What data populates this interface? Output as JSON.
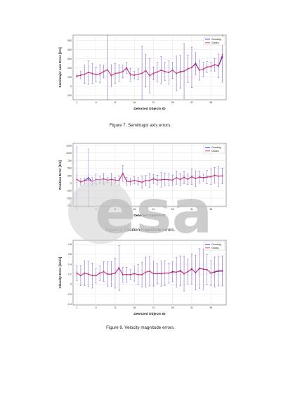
{
  "charts": [
    {
      "caption": "Figure 7. Semimajor axis errors.",
      "chart_data": {
        "type": "line",
        "xlabel": "Detected Objects ID",
        "ylabel": "Semimajor axis Error [km]",
        "xticks": [
          1,
          6,
          11,
          16,
          21,
          26,
          31,
          36
        ],
        "yticks": [
          -100,
          0,
          100,
          200,
          300,
          400,
          500
        ],
        "ylim": [
          -150,
          560
        ],
        "legend_position": "top-right",
        "grid": true,
        "series": [
          {
            "name": "Gooding",
            "color": "#1f1fe0",
            "x": [
              1,
              2,
              3,
              4,
              5,
              6,
              7,
              8,
              9,
              10,
              11,
              12,
              13,
              14,
              15,
              16,
              17,
              18,
              19,
              20,
              21,
              22,
              23,
              24,
              25,
              26,
              27,
              28,
              29,
              30,
              31,
              32,
              33,
              34,
              35,
              36,
              37,
              38,
              39
            ],
            "y": [
              110,
              120,
              130,
              150,
              140,
              125,
              135,
              160,
              180,
              115,
              140,
              145,
              160,
              200,
              125,
              120,
              130,
              140,
              170,
              115,
              140,
              155,
              175,
              160,
              150,
              175,
              140,
              155,
              165,
              190,
              205,
              250,
              175,
              185,
              210,
              215,
              235,
              220,
              320
            ],
            "err": [
              10,
              40,
              100,
              130,
              110,
              80,
              100,
              70,
              420,
              120,
              110,
              90,
              70,
              60,
              70,
              40,
              60,
              300,
              180,
              190,
              70,
              110,
              150,
              100,
              130,
              90,
              190,
              180,
              300,
              150,
              220,
              120,
              110,
              80,
              60,
              50,
              70,
              130,
              280
            ]
          },
          {
            "name": "Gauss",
            "color": "#e0306a",
            "x": [
              1,
              2,
              3,
              4,
              5,
              6,
              7,
              8,
              9,
              10,
              11,
              12,
              13,
              14,
              15,
              16,
              17,
              18,
              19,
              20,
              21,
              22,
              23,
              24,
              25,
              26,
              27,
              28,
              29,
              30,
              31,
              32,
              33,
              34,
              35,
              36,
              37,
              38,
              39
            ],
            "y": [
              110,
              120,
              130,
              150,
              140,
              125,
              135,
              160,
              180,
              115,
              140,
              145,
              160,
              195,
              125,
              120,
              130,
              140,
              170,
              115,
              140,
              155,
              175,
              160,
              150,
              175,
              140,
              160,
              165,
              190,
              205,
              240,
              175,
              185,
              210,
              215,
              235,
              225,
              345
            ],
            "err": [
              10,
              40,
              100,
              130,
              110,
              80,
              100,
              70,
              420,
              120,
              110,
              90,
              70,
              60,
              70,
              40,
              60,
              300,
              180,
              190,
              70,
              110,
              150,
              100,
              130,
              90,
              190,
              180,
              300,
              150,
              220,
              120,
              110,
              80,
              60,
              50,
              70,
              130,
              280
            ]
          }
        ]
      }
    },
    {
      "caption": "Figure 8. Position magnitude errors.",
      "chart_data": {
        "type": "line",
        "xlabel": "Detected Objects ID",
        "ylabel": "Position Error [km]",
        "xticks": [
          1,
          6,
          11,
          16,
          21,
          26,
          31,
          36
        ],
        "yticks": [
          -750,
          -500,
          -250,
          0,
          250,
          500,
          750,
          1000,
          1250
        ],
        "ylim": [
          -780,
          1320
        ],
        "legend_position": "top-right",
        "grid": true,
        "series": [
          {
            "name": "Gooding",
            "color": "#1f1fe0",
            "x": [
              1,
              2,
              3,
              4,
              5,
              6,
              7,
              8,
              9,
              10,
              11,
              12,
              13,
              14,
              15,
              16,
              17,
              18,
              19,
              20,
              21,
              22,
              23,
              24,
              25,
              26,
              27,
              28,
              29,
              30,
              31,
              32,
              33,
              34,
              35,
              36,
              37,
              38,
              39
            ],
            "y": [
              120,
              40,
              80,
              180,
              60,
              120,
              110,
              140,
              100,
              120,
              100,
              90,
              320,
              60,
              50,
              90,
              60,
              30,
              80,
              90,
              140,
              100,
              110,
              120,
              110,
              100,
              180,
              120,
              190,
              130,
              210,
              150,
              200,
              180,
              200,
              210,
              260,
              230,
              240
            ],
            "err": [
              1080,
              100,
              80,
              950,
              120,
              180,
              120,
              180,
              80,
              200,
              90,
              150,
              260,
              130,
              110,
              120,
              120,
              200,
              170,
              230,
              150,
              160,
              240,
              210,
              200,
              170,
              220,
              200,
              210,
              180,
              260,
              260,
              200,
              120,
              220,
              260,
              260,
              340,
              260
            ]
          },
          {
            "name": "Gauss",
            "color": "#e0306a",
            "x": [
              1,
              2,
              3,
              4,
              5,
              6,
              7,
              8,
              9,
              10,
              11,
              12,
              13,
              14,
              15,
              16,
              17,
              18,
              19,
              20,
              21,
              22,
              23,
              24,
              25,
              26,
              27,
              28,
              29,
              30,
              31,
              32,
              33,
              34,
              35,
              36,
              37,
              38,
              39
            ],
            "y": [
              120,
              40,
              80,
              110,
              60,
              120,
              110,
              140,
              100,
              120,
              100,
              90,
              320,
              60,
              50,
              90,
              60,
              30,
              80,
              90,
              140,
              100,
              110,
              120,
              110,
              100,
              180,
              120,
              190,
              130,
              210,
              150,
              200,
              180,
              200,
              210,
              260,
              230,
              240
            ],
            "err": [
              200,
              100,
              80,
              200,
              120,
              180,
              120,
              180,
              80,
              200,
              90,
              150,
              260,
              130,
              110,
              120,
              120,
              200,
              170,
              230,
              150,
              160,
              240,
              210,
              200,
              170,
              220,
              200,
              210,
              180,
              260,
              260,
              200,
              120,
              220,
              260,
              260,
              340,
              260
            ]
          }
        ]
      }
    },
    {
      "caption": "Figure 9. Velocity magnitude errors.",
      "chart_data": {
        "type": "line",
        "xlabel": "Detected Objects ID",
        "ylabel": "Velocity Error [km/s]",
        "xticks": [
          1,
          6,
          11,
          16,
          21,
          26,
          31,
          36
        ],
        "yticks": [
          -0.4,
          -0.2,
          0.0,
          0.2,
          0.4,
          0.6,
          0.8
        ],
        "ylim": [
          -0.42,
          0.88
        ],
        "legend_position": "top-right",
        "grid": true,
        "series": [
          {
            "name": "Gooding",
            "color": "#1f1fe0",
            "x": [
              1,
              2,
              3,
              4,
              5,
              6,
              7,
              8,
              9,
              10,
              11,
              12,
              13,
              14,
              15,
              16,
              17,
              18,
              19,
              20,
              21,
              22,
              23,
              24,
              25,
              26,
              27,
              28,
              29,
              30,
              31,
              32,
              33,
              34,
              35,
              36,
              37,
              38,
              39
            ],
            "y": [
              0.22,
              0.17,
              0.22,
              0.2,
              0.17,
              0.17,
              0.22,
              0.25,
              0.2,
              0.2,
              0.22,
              0.32,
              0.19,
              0.19,
              0.19,
              0.21,
              0.19,
              0.19,
              0.24,
              0.26,
              0.21,
              0.21,
              0.21,
              0.22,
              0.22,
              0.25,
              0.24,
              0.27,
              0.21,
              0.25,
              0.3,
              0.23,
              0.31,
              0.3,
              0.29,
              0.22,
              0.24,
              0.26,
              0.26
            ],
            "err": [
              0.15,
              0.2,
              0.25,
              0.25,
              0.25,
              0.15,
              0.15,
              0.2,
              0.25,
              0.25,
              0.3,
              0.45,
              0.15,
              0.15,
              0.1,
              0.15,
              0.2,
              0.25,
              0.3,
              0.3,
              0.25,
              0.2,
              0.25,
              0.25,
              0.2,
              0.2,
              0.3,
              0.3,
              0.35,
              0.25,
              0.3,
              0.35,
              0.4,
              0.4,
              0.3,
              0.25,
              0.3,
              0.3,
              0.3
            ]
          },
          {
            "name": "Gauss",
            "color": "#e0306a",
            "x": [
              1,
              2,
              3,
              4,
              5,
              6,
              7,
              8,
              9,
              10,
              11,
              12,
              13,
              14,
              15,
              16,
              17,
              18,
              19,
              20,
              21,
              22,
              23,
              24,
              25,
              26,
              27,
              28,
              29,
              30,
              31,
              32,
              33,
              34,
              35,
              36,
              37,
              38,
              39
            ],
            "y": [
              0.22,
              0.17,
              0.22,
              0.2,
              0.17,
              0.17,
              0.22,
              0.25,
              0.2,
              0.2,
              0.22,
              0.33,
              0.19,
              0.19,
              0.19,
              0.21,
              0.19,
              0.19,
              0.24,
              0.26,
              0.21,
              0.21,
              0.21,
              0.22,
              0.22,
              0.24,
              0.24,
              0.26,
              0.21,
              0.25,
              0.31,
              0.23,
              0.32,
              0.3,
              0.29,
              0.22,
              0.25,
              0.27,
              0.27
            ],
            "err": [
              0.15,
              0.2,
              0.25,
              0.25,
              0.25,
              0.15,
              0.15,
              0.2,
              0.25,
              0.25,
              0.3,
              0.45,
              0.15,
              0.15,
              0.1,
              0.15,
              0.2,
              0.25,
              0.3,
              0.3,
              0.25,
              0.2,
              0.25,
              0.25,
              0.2,
              0.2,
              0.3,
              0.3,
              0.35,
              0.25,
              0.3,
              0.35,
              0.4,
              0.4,
              0.3,
              0.25,
              0.3,
              0.3,
              0.3
            ]
          }
        ]
      }
    }
  ],
  "watermark": {
    "text": "esa",
    "color": "#c8c8c8"
  }
}
